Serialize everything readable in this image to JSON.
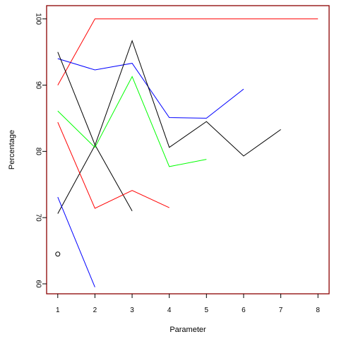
{
  "chart_data": {
    "type": "line",
    "title": "",
    "xlabel": "Parameter",
    "ylabel": "Percentage",
    "xlim": [
      0.7,
      8.3
    ],
    "ylim": [
      58.5,
      102
    ],
    "x_ticks": [
      "1",
      "2",
      "3",
      "4",
      "5",
      "6",
      "7",
      "8"
    ],
    "y_ticks": [
      "60",
      "70",
      "80",
      "90",
      "100"
    ],
    "frame_color": "#8b0000",
    "grid": false,
    "legend": "none",
    "series": [
      {
        "color": "#ff0000",
        "x": [
          1,
          2,
          3,
          4,
          5,
          6,
          7,
          8
        ],
        "y": [
          90.0,
          100.0,
          100.0,
          100.0,
          100.0,
          100.0,
          100.0,
          100.0
        ]
      },
      {
        "color": "#0000ff",
        "x": [
          1,
          2,
          3,
          4,
          5,
          6
        ],
        "y": [
          94.0,
          92.3,
          93.3,
          85.1,
          85.0,
          89.4
        ]
      },
      {
        "color": "#000000",
        "x": [
          1,
          2,
          3
        ],
        "y": [
          95.0,
          81.0,
          71.0
        ]
      },
      {
        "color": "#000000",
        "x": [
          1,
          2,
          3,
          4,
          5,
          6,
          7
        ],
        "y": [
          70.6,
          80.9,
          96.7,
          80.6,
          84.5,
          79.3,
          83.3
        ]
      },
      {
        "color": "#00ff00",
        "x": [
          1,
          2,
          3,
          4,
          5
        ],
        "y": [
          86.1,
          80.6,
          91.3,
          77.7,
          78.8
        ]
      },
      {
        "color": "#ff0000",
        "x": [
          1,
          2,
          3,
          4
        ],
        "y": [
          84.4,
          71.4,
          74.1,
          71.5
        ]
      },
      {
        "color": "#0000ff",
        "x": [
          1,
          2
        ],
        "y": [
          73.1,
          59.5
        ]
      }
    ],
    "points": [
      {
        "x": 1,
        "y": 64.5,
        "marker": "open-circle",
        "color": "#000000"
      }
    ]
  }
}
